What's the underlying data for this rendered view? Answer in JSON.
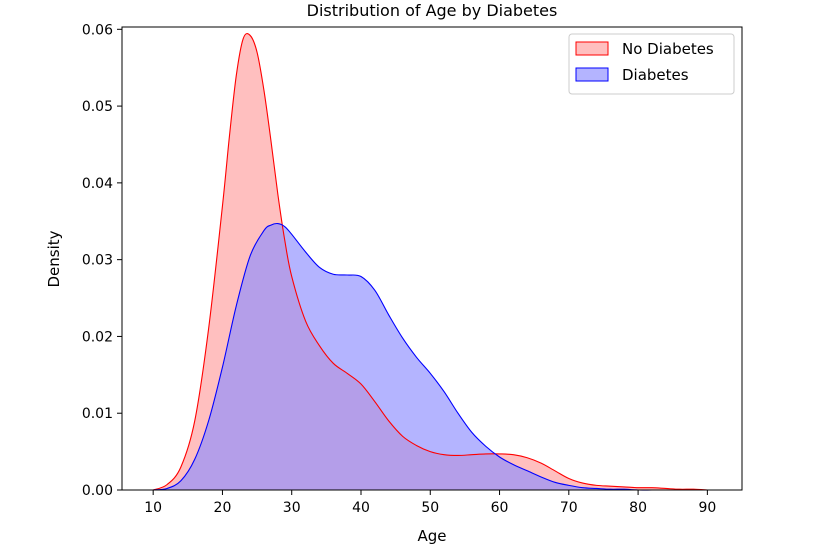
{
  "chart_data": {
    "type": "area",
    "title": "Distribution of Age by Diabetes",
    "xlabel": "Age",
    "ylabel": "Density",
    "xlim": [
      5.5,
      95
    ],
    "ylim": [
      0,
      0.0603
    ],
    "xticks": [
      10,
      20,
      30,
      40,
      50,
      60,
      70,
      80,
      90
    ],
    "yticks": [
      0.0,
      0.01,
      0.02,
      0.03,
      0.04,
      0.05,
      0.06
    ],
    "ytick_labels": [
      "0.00",
      "0.01",
      "0.02",
      "0.03",
      "0.04",
      "0.05",
      "0.06"
    ],
    "grid": false,
    "legend_position": "top-right",
    "series": [
      {
        "name": "No Diabetes",
        "color": "#ff0000",
        "fill": "#ff9c9c",
        "x": [
          10,
          12,
          14,
          16,
          18,
          20,
          21,
          22,
          23,
          24,
          25,
          26,
          27,
          28,
          29,
          30,
          32,
          34,
          36,
          38,
          40,
          42,
          44,
          46,
          48,
          50,
          52,
          54,
          56,
          58,
          60,
          62,
          64,
          66,
          68,
          70,
          72,
          74,
          76,
          78,
          80,
          82,
          84,
          86,
          88,
          90
        ],
        "y": [
          0.0,
          0.0007,
          0.003,
          0.009,
          0.021,
          0.037,
          0.046,
          0.054,
          0.0588,
          0.0592,
          0.057,
          0.052,
          0.0455,
          0.0385,
          0.0325,
          0.0278,
          0.022,
          0.0188,
          0.0165,
          0.0152,
          0.0138,
          0.0115,
          0.009,
          0.007,
          0.0058,
          0.005,
          0.0046,
          0.0045,
          0.0046,
          0.0047,
          0.0047,
          0.0046,
          0.0042,
          0.0035,
          0.0025,
          0.0015,
          0.0009,
          0.0006,
          0.0005,
          0.0004,
          0.0003,
          0.0003,
          0.0002,
          0.0001,
          0.0001,
          0.0
        ]
      },
      {
        "name": "Diabetes",
        "color": "#0000ff",
        "fill": "#8c8cff",
        "x": [
          10,
          12,
          14,
          16,
          18,
          20,
          22,
          24,
          26,
          27,
          28,
          29,
          30,
          32,
          34,
          36,
          38,
          40,
          42,
          44,
          46,
          48,
          50,
          52,
          54,
          56,
          58,
          60,
          62,
          64,
          66,
          68,
          70,
          72,
          74,
          76,
          78,
          80,
          82,
          84,
          86,
          88,
          90
        ],
        "y": [
          0.0,
          0.0002,
          0.0012,
          0.004,
          0.009,
          0.016,
          0.024,
          0.0305,
          0.0338,
          0.0345,
          0.0347,
          0.0343,
          0.0333,
          0.031,
          0.029,
          0.0281,
          0.028,
          0.0278,
          0.026,
          0.0228,
          0.0198,
          0.0173,
          0.0152,
          0.0128,
          0.01,
          0.0075,
          0.0057,
          0.0043,
          0.0033,
          0.0025,
          0.0017,
          0.001,
          0.0006,
          0.0003,
          0.0002,
          0.0001,
          0.0001,
          0.0,
          0.0,
          0.0,
          0.0,
          0.0,
          0.0
        ]
      }
    ]
  }
}
